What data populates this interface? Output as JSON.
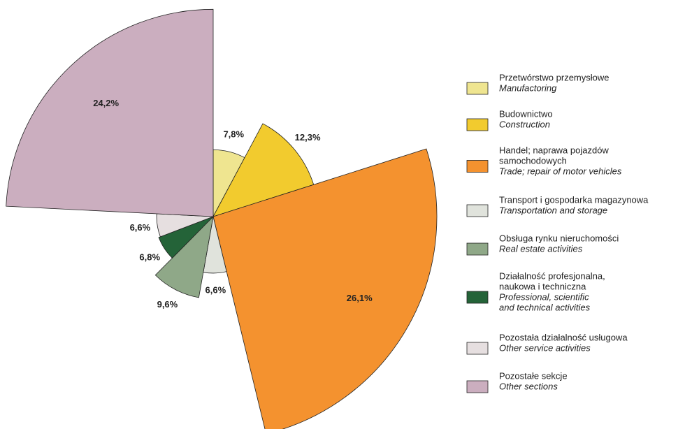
{
  "chart_data": {
    "type": "pie",
    "radius_by_value": true,
    "values": [
      7.8,
      12.3,
      26.1,
      6.6,
      9.6,
      6.8,
      6.6,
      24.2
    ],
    "value_labels": [
      "7,8%",
      "12,3%",
      "26,1%",
      "6,6%",
      "9,6%",
      "6,8%",
      "6,6%",
      "24,2%"
    ],
    "colors": [
      "#efe590",
      "#f2cb2e",
      "#f4922f",
      "#e0e3dc",
      "#8fa888",
      "#246338",
      "#e6dfe0",
      "#cbaebf"
    ],
    "legend": [
      {
        "pl": [
          "Przetwórstwo przemysłowe"
        ],
        "en": [
          "Manufactoring"
        ]
      },
      {
        "pl": [
          "Budownictwo"
        ],
        "en": [
          "Construction"
        ]
      },
      {
        "pl": [
          "Handel; naprawa pojazdów",
          " samochodowych"
        ],
        "en": [
          "Trade; repair of motor vehicles"
        ]
      },
      {
        "pl": [
          "Transport i gospodarka magazynowa"
        ],
        "en": [
          "Transportation and storage"
        ]
      },
      {
        "pl": [
          "Obsługa rynku nieruchomości"
        ],
        "en": [
          "Real estate activities"
        ]
      },
      {
        "pl": [
          "Działalność profesjonalna,",
          "naukowa i techniczna"
        ],
        "en": [
          "Professional, scientific",
          "and technical activities"
        ]
      },
      {
        "pl": [
          "Pozostała działalność usługowa"
        ],
        "en": [
          "Other service activities"
        ]
      },
      {
        "pl": [
          "Pozostałe sekcje"
        ],
        "en": [
          "Other sections"
        ]
      }
    ]
  }
}
